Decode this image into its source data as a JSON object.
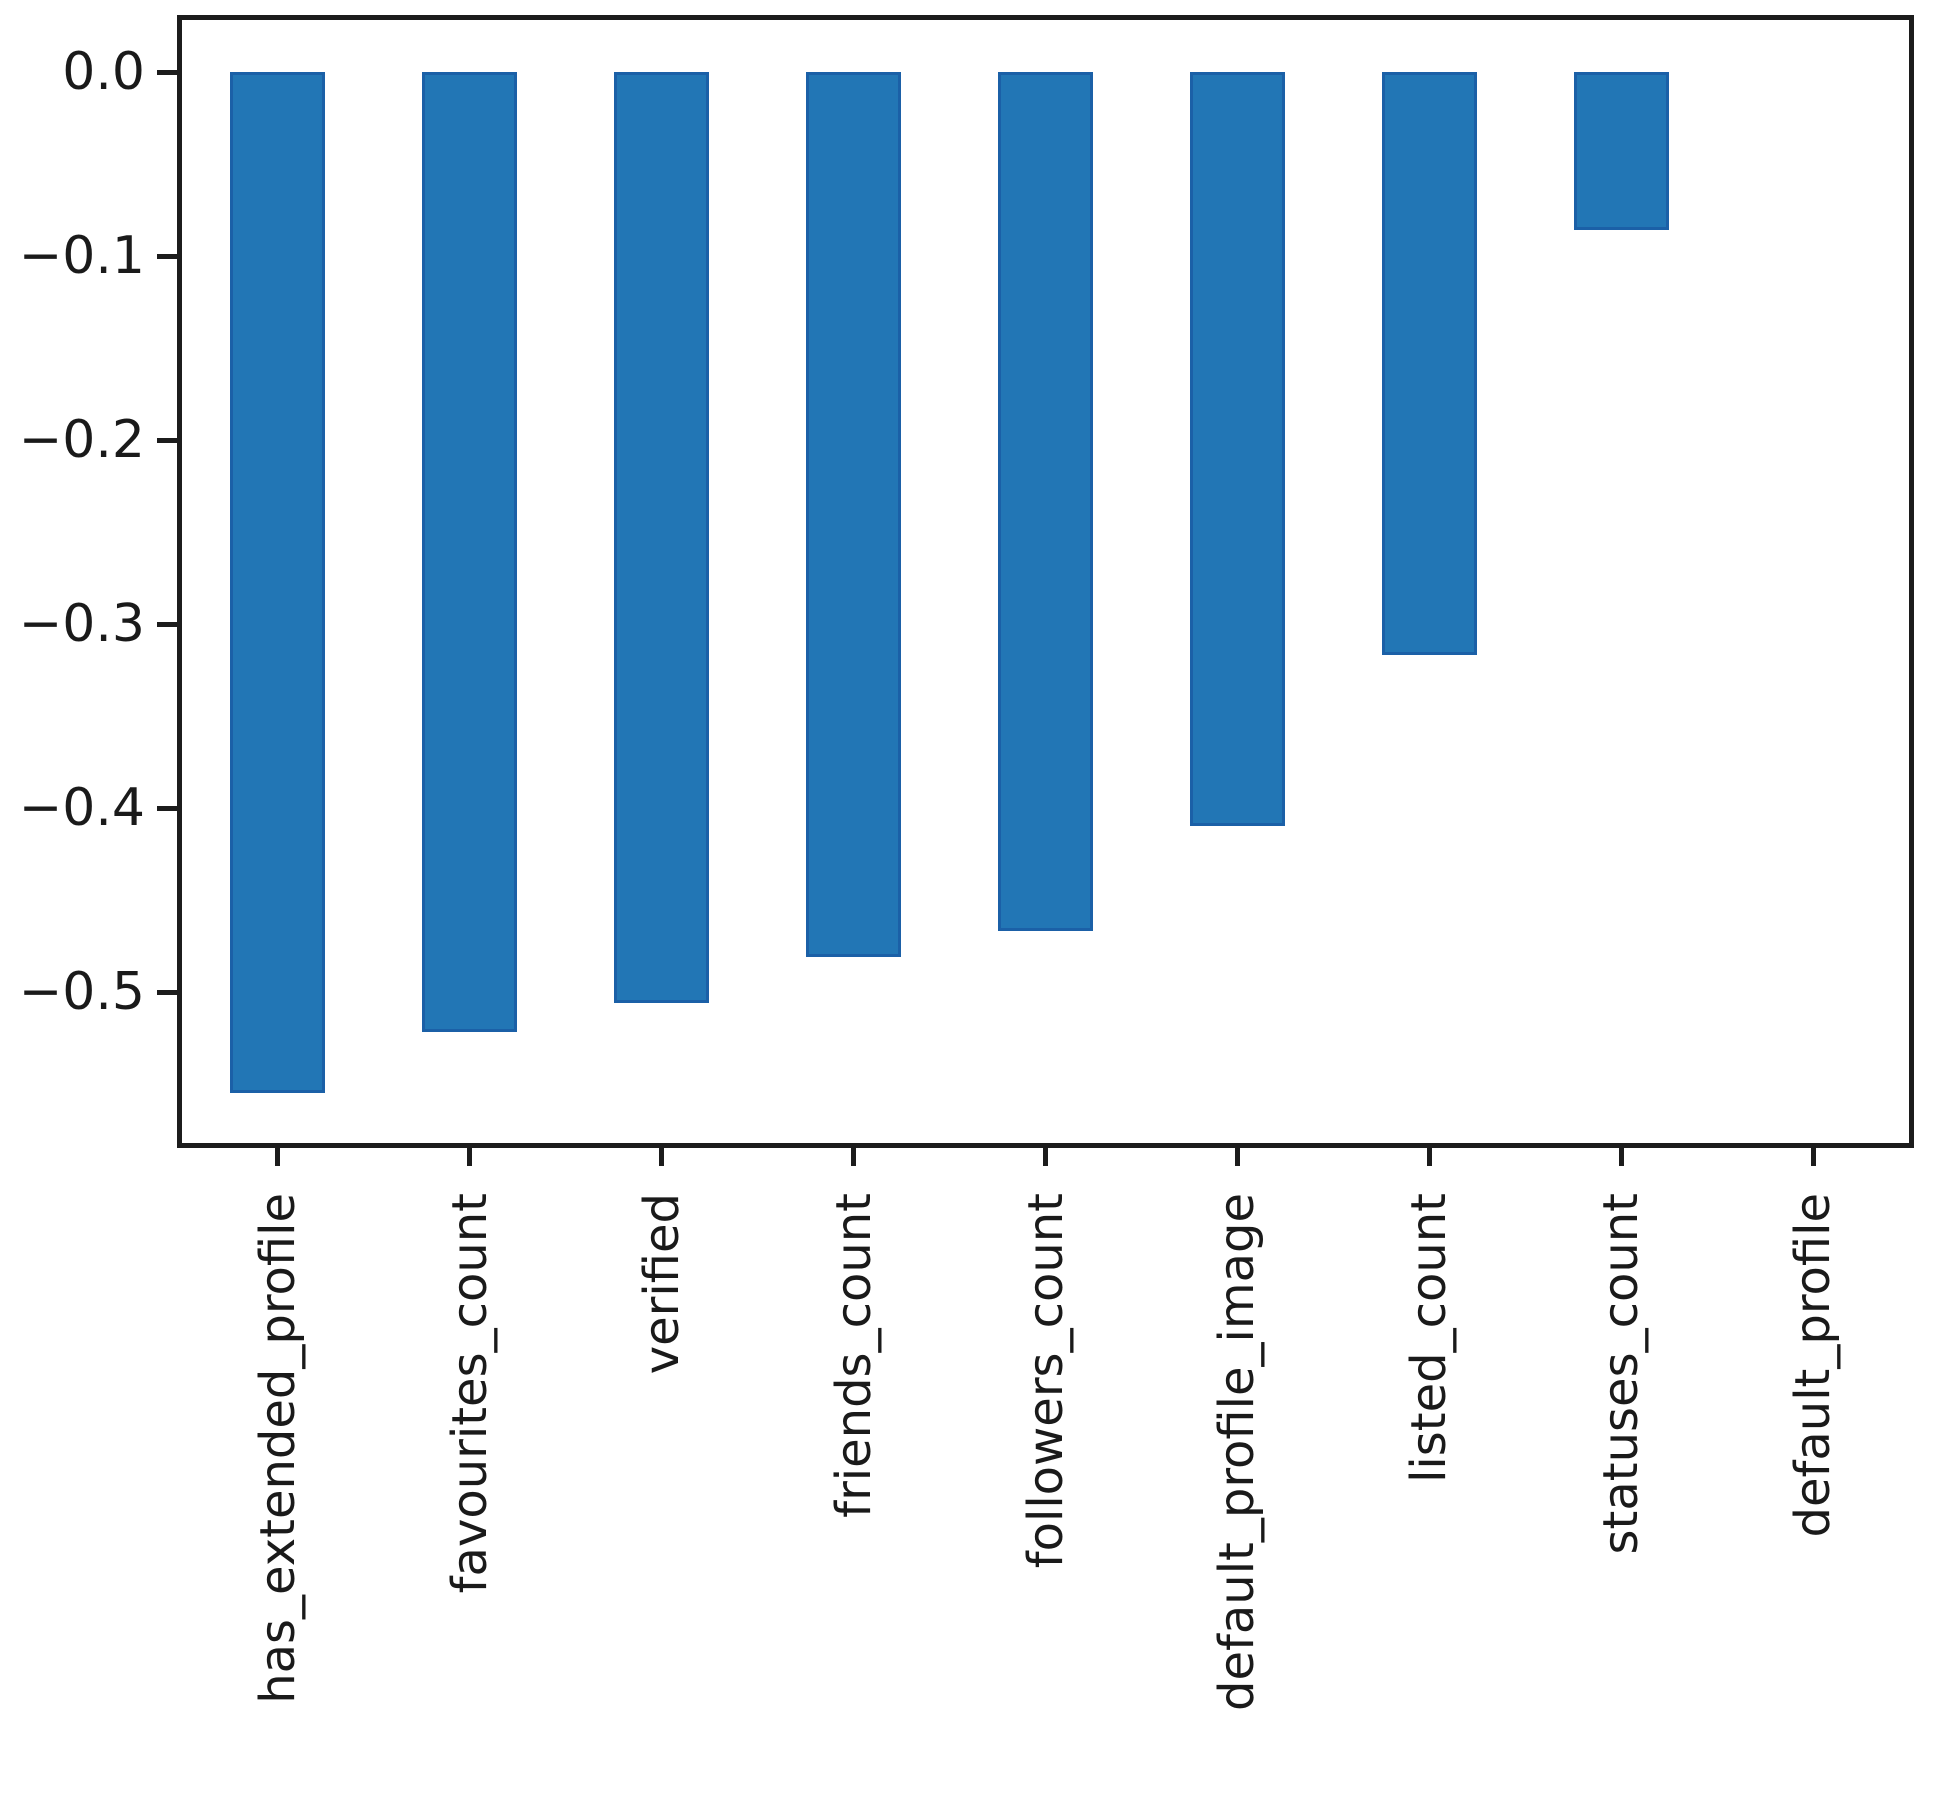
{
  "chart_data": {
    "type": "bar",
    "title": "",
    "xlabel": "",
    "ylabel": "",
    "categories": [
      "has_extended_profile",
      "favourites_count",
      "verified",
      "friends_count",
      "followers_count",
      "default_profile_image",
      "listed_count",
      "statuses_count",
      "default_profile"
    ],
    "values": [
      -0.555,
      -0.522,
      -0.506,
      -0.481,
      -0.467,
      -0.41,
      -0.317,
      -0.086,
      0.0
    ],
    "yticks": [
      0.0,
      -0.1,
      -0.2,
      -0.3,
      -0.4,
      -0.5
    ],
    "ytick_labels": [
      "0.0",
      "−0.1",
      "−0.2",
      "−0.3",
      "−0.4",
      "−0.5"
    ],
    "ylim": [
      -0.583,
      0.031
    ],
    "grid": false,
    "legend": null,
    "bar_color": "#2276b5",
    "bar_edge_color": "#1b60a7",
    "spine_color": "#1c1c1c",
    "text_color": "#1a1a1a"
  }
}
